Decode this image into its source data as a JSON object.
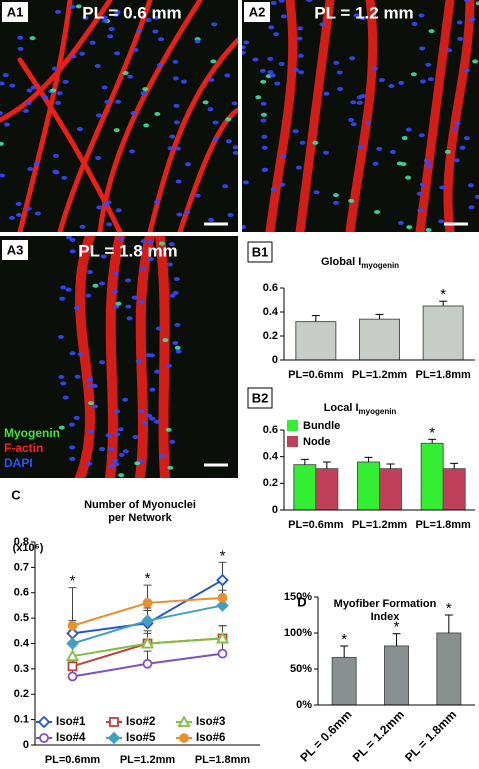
{
  "panels": [
    {
      "label": "A1",
      "title": "PL = 0.6 mm"
    },
    {
      "label": "A2",
      "title": "PL = 1.2 mm"
    },
    {
      "label": "A3",
      "title": "PL = 1.8 mm"
    }
  ],
  "stain_legend": [
    {
      "text": "Myogenin",
      "color": "#44e044"
    },
    {
      "text": "F-actin",
      "color": "#ff2020"
    },
    {
      "text": "DAPI",
      "color": "#3050ff"
    }
  ],
  "chart_data": [
    {
      "type": "bar",
      "label": "B1",
      "title": "Global I",
      "title_sub": "myogenin",
      "categories": [
        "PL=0.6mm",
        "PL=1.2mm",
        "PL=1.8mm"
      ],
      "series": [
        {
          "color": "#c8ccc8",
          "values": [
            0.32,
            0.34,
            0.45
          ],
          "errors": [
            0.05,
            0.04,
            0.04
          ]
        }
      ],
      "ylim": [
        0,
        0.6
      ],
      "yticks": [
        0,
        0.2,
        0.4,
        0.6
      ],
      "annotations": [
        {
          "text": "*",
          "category": 2,
          "series": 0
        }
      ]
    },
    {
      "type": "bar",
      "label": "B2",
      "title": "Local I",
      "title_sub": "myogenin",
      "categories": [
        "PL=0.6mm",
        "PL=1.2mm",
        "PL=1.8mm"
      ],
      "series": [
        {
          "name": "Bundle",
          "color": "#33ee33",
          "values": [
            0.34,
            0.36,
            0.5
          ],
          "errors": [
            0.04,
            0.035,
            0.03
          ]
        },
        {
          "name": "Node",
          "color": "#c0405a",
          "values": [
            0.31,
            0.31,
            0.31
          ],
          "errors": [
            0.05,
            0.035,
            0.04
          ]
        }
      ],
      "ylim": [
        0,
        0.6
      ],
      "yticks": [
        0,
        0.2,
        0.4,
        0.6
      ],
      "legend": "upper left",
      "annotations": [
        {
          "text": "*",
          "category": 2,
          "series": 0
        }
      ]
    },
    {
      "type": "line",
      "label": "C",
      "title_lines": [
        "Number of Myonuclei",
        "per Network"
      ],
      "ylabel": "(x10⁶)",
      "categories": [
        "PL=0.6mm",
        "PL=1.2mm",
        "PL=1.8mm"
      ],
      "series": [
        {
          "name": "Iso#1",
          "color": "#2255cc",
          "marker": "diamond",
          "filled": false,
          "values": [
            0.44,
            0.48,
            0.65
          ],
          "errors": [
            0.05,
            0.05,
            0.07
          ]
        },
        {
          "name": "Iso#2",
          "color": "#c04040",
          "marker": "square",
          "filled": false,
          "values": [
            0.31,
            0.4,
            0.42
          ],
          "errors": [
            0.03,
            0.05,
            0.05
          ]
        },
        {
          "name": "Iso#3",
          "color": "#80c040",
          "marker": "triangle",
          "filled": false,
          "values": [
            0.35,
            0.4,
            0.42
          ],
          "errors": [
            0.04,
            0.04,
            0.05
          ]
        },
        {
          "name": "Iso#4",
          "color": "#8050c0",
          "marker": "circle",
          "filled": false,
          "values": [
            0.27,
            0.32,
            0.36
          ],
          "errors": [
            0.05,
            0.05,
            0.06
          ]
        },
        {
          "name": "Iso#5",
          "color": "#40a0c0",
          "marker": "diamond",
          "filled": true,
          "values": [
            0.4,
            0.49,
            0.55
          ],
          "errors": [
            0.05,
            0.05,
            0.06
          ]
        },
        {
          "name": "Iso#6",
          "color": "#e89030",
          "marker": "circle",
          "filled": true,
          "values": [
            0.47,
            0.56,
            0.58
          ],
          "errors": [
            0.15,
            0.07,
            0.06
          ]
        }
      ],
      "ylim": [
        0,
        0.8
      ],
      "yticks": [
        0,
        0.1,
        0.2,
        0.3,
        0.4,
        0.5,
        0.6,
        0.7,
        0.8
      ],
      "legend": "lower center",
      "annotations": [
        {
          "text": "*",
          "category": 0
        },
        {
          "text": "*",
          "category": 1
        },
        {
          "text": "*",
          "category": 2
        }
      ]
    },
    {
      "type": "bar",
      "label": "D",
      "title_lines": [
        "Myofiber Formation",
        "Index"
      ],
      "categories": [
        "PL = 0.6mm",
        "PL = 1.2mm",
        "PL = 1.8mm"
      ],
      "series": [
        {
          "color": "#8a9090",
          "values": [
            66,
            82,
            100
          ],
          "errors": [
            16,
            17,
            25
          ]
        }
      ],
      "ylim": [
        0,
        150
      ],
      "yticks": [
        {
          "value": 0,
          "label": "0%"
        },
        {
          "value": 50,
          "label": "50%"
        },
        {
          "value": 100,
          "label": "100%"
        },
        {
          "value": 150,
          "label": "150%"
        }
      ],
      "rotate_labels": true,
      "annotations": [
        {
          "text": "*",
          "category": 0,
          "series": 0
        },
        {
          "text": "*",
          "category": 1,
          "series": 0
        },
        {
          "text": "*",
          "category": 2,
          "series": 0
        }
      ]
    }
  ]
}
